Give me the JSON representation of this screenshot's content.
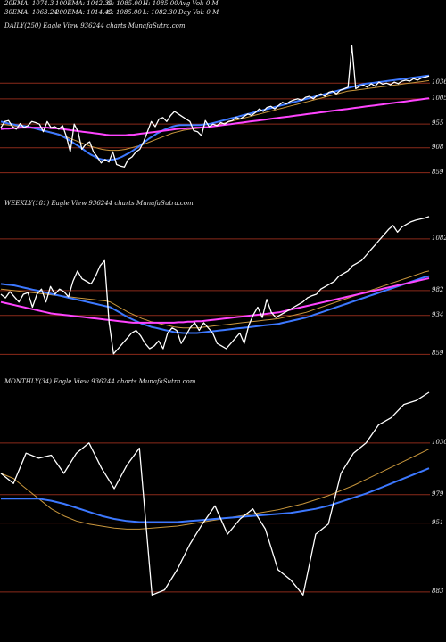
{
  "header": {
    "ema20": "20EMA: 1074.3",
    "ema100": "100EMA: 1042.39",
    "open": "O: 1085.00",
    "high": "H: 1085.00",
    "avg_vol": "Avg Vol: 0  M",
    "ema30": "30EMA: 1063.24",
    "ema200": "200EMA: 1014.49",
    "close": "C: 1085.00",
    "low": "L: 1082.30",
    "day_vol": "Day Vol: 0  M"
  },
  "colors": {
    "background": "#000000",
    "price": "#ffffff",
    "ema_fast": "#3c78ff",
    "ema_slow": "#ff44ff",
    "ema_brown": "#c8963c",
    "level_line": "#8b2a1a",
    "text": "#e8e8e8"
  },
  "chart_data": [
    {
      "type": "line",
      "label": "DAILY(250) Eagle  View  936244  charts MunafaSutra.com",
      "y_ticks": [
        "1036",
        "1005",
        "955",
        "908",
        "859"
      ],
      "levels": [
        1036,
        1005,
        955,
        908,
        859
      ],
      "ylim": [
        830,
        1130
      ],
      "series": [
        {
          "name": "price",
          "color": "#ffffff",
          "values": [
            948,
            960,
            962,
            950,
            945,
            956,
            948,
            952,
            960,
            958,
            955,
            940,
            960,
            948,
            950,
            945,
            952,
            930,
            900,
            955,
            940,
            905,
            915,
            920,
            900,
            890,
            878,
            885,
            880,
            900,
            875,
            872,
            870,
            885,
            890,
            900,
            905,
            920,
            940,
            960,
            950,
            965,
            968,
            960,
            972,
            980,
            975,
            970,
            965,
            960,
            942,
            940,
            932,
            962,
            950,
            955,
            952,
            958,
            955,
            960,
            962,
            968,
            965,
            970,
            975,
            972,
            978,
            985,
            980,
            988,
            990,
            985,
            992,
            998,
            995,
            1000,
            1003,
            1005,
            1002,
            1008,
            1010,
            1005,
            1012,
            1015,
            1010,
            1018,
            1020,
            1015,
            1022,
            1025,
            1028,
            1110,
            1025,
            1030,
            1032,
            1028,
            1035,
            1030,
            1038,
            1034,
            1036,
            1033,
            1038,
            1035,
            1040,
            1042,
            1040,
            1045,
            1042,
            1046,
            1048,
            1050
          ]
        },
        {
          "name": "EMA fast",
          "color": "#3c78ff",
          "values": [
            960,
            958,
            956,
            955,
            953,
            952,
            951,
            950,
            948,
            946,
            944,
            942,
            940,
            938,
            936,
            934,
            930,
            926,
            921,
            916,
            911,
            906,
            900,
            895,
            891,
            887,
            885,
            884,
            884,
            885,
            887,
            890,
            894,
            898,
            903,
            908,
            914,
            920,
            926,
            931,
            936,
            940,
            944,
            947,
            950,
            952,
            953,
            953,
            953,
            953,
            953,
            953,
            954,
            955,
            956,
            958,
            960,
            962,
            964,
            966,
            968,
            970,
            972,
            974,
            976,
            978,
            980,
            982,
            984,
            986,
            988,
            990,
            992,
            994,
            996,
            998,
            1000,
            1002,
            1004,
            1006,
            1008,
            1010,
            1012,
            1014,
            1016,
            1018,
            1020,
            1022,
            1024,
            1026,
            1028,
            1030,
            1032,
            1034,
            1035,
            1036,
            1037,
            1038,
            1039,
            1040,
            1041,
            1042,
            1043,
            1044,
            1045,
            1046,
            1047,
            1048,
            1049,
            1050,
            1051
          ]
        },
        {
          "name": "EMA slow",
          "color": "#ff44ff",
          "values": [
            945,
            946,
            946,
            947,
            947,
            948,
            948,
            948,
            948,
            948,
            948,
            948,
            948,
            947,
            947,
            946,
            945,
            944,
            943,
            942,
            941,
            940,
            939,
            938,
            937,
            936,
            935,
            934,
            933,
            933,
            933,
            933,
            933,
            934,
            934,
            935,
            936,
            937,
            938,
            939,
            940,
            941,
            942,
            943,
            944,
            945,
            946,
            946,
            947,
            947,
            948,
            948,
            949,
            949,
            950,
            951,
            952,
            953,
            954,
            955,
            956,
            957,
            958,
            959,
            960,
            961,
            962,
            963,
            964,
            965,
            966,
            967,
            968,
            969,
            970,
            971,
            972,
            973,
            974,
            975,
            976,
            977,
            978,
            979,
            980,
            981,
            982,
            983,
            984,
            985,
            986,
            987,
            988,
            989,
            990,
            991,
            992,
            993,
            994,
            995,
            996,
            997,
            998,
            999,
            1000,
            1001,
            1002,
            1003,
            1004,
            1005,
            1006
          ]
        },
        {
          "name": "EMA brown",
          "color": "#c8963c",
          "values": [
            955,
            954,
            953,
            952,
            951,
            950,
            949,
            948,
            947,
            946,
            945,
            943,
            941,
            939,
            937,
            935,
            932,
            929,
            926,
            923,
            920,
            917,
            914,
            911,
            909,
            907,
            905,
            904,
            903,
            903,
            903,
            904,
            905,
            907,
            909,
            911,
            913,
            916,
            919,
            922,
            925,
            928,
            931,
            934,
            937,
            939,
            941,
            943,
            944,
            945,
            946,
            947,
            948,
            949,
            950,
            952,
            954,
            956,
            958,
            960,
            962,
            964,
            966,
            968,
            970,
            972,
            974,
            976,
            978,
            980,
            982,
            984,
            986,
            988,
            990,
            992,
            994,
            996,
            998,
            1000,
            1002,
            1004,
            1006,
            1008,
            1010,
            1012,
            1014,
            1016,
            1018,
            1020,
            1021,
            1022,
            1023,
            1024,
            1025,
            1026,
            1027,
            1028,
            1029,
            1030,
            1031,
            1032,
            1033,
            1034,
            1035,
            1036,
            1037,
            1038,
            1039,
            1040,
            1041
          ]
        }
      ]
    },
    {
      "type": "line",
      "label": "WEEKLY(181) Eagle  View  936244  charts MunafaSutra.com",
      "y_ticks": [
        "1082",
        "982",
        "934",
        "859"
      ],
      "levels": [
        1082,
        982,
        934,
        859
      ],
      "ylim": [
        820,
        1130
      ],
      "series": [
        {
          "name": "price",
          "color": "#ffffff",
          "values": [
            975,
            968,
            980,
            970,
            960,
            975,
            978,
            950,
            975,
            985,
            960,
            990,
            975,
            985,
            980,
            970,
            1000,
            1020,
            1005,
            1000,
            995,
            1010,
            1030,
            1040,
            920,
            860,
            870,
            880,
            890,
            900,
            905,
            895,
            880,
            870,
            875,
            885,
            870,
            900,
            910,
            905,
            880,
            895,
            910,
            920,
            905,
            920,
            910,
            900,
            880,
            875,
            870,
            880,
            890,
            900,
            880,
            915,
            935,
            950,
            930,
            965,
            940,
            930,
            935,
            940,
            945,
            950,
            955,
            960,
            968,
            972,
            975,
            985,
            990,
            995,
            1000,
            1010,
            1015,
            1020,
            1030,
            1035,
            1040,
            1050,
            1060,
            1070,
            1080,
            1090,
            1100,
            1108,
            1095,
            1105,
            1110,
            1115,
            1118,
            1120,
            1122,
            1125
          ]
        },
        {
          "name": "EMA fast",
          "color": "#3c78ff",
          "values": [
            995,
            994,
            993,
            992,
            990,
            988,
            986,
            984,
            982,
            980,
            978,
            976,
            974,
            972,
            970,
            968,
            966,
            964,
            962,
            960,
            958,
            956,
            954,
            952,
            950,
            945,
            940,
            935,
            930,
            926,
            922,
            918,
            915,
            912,
            910,
            908,
            906,
            904,
            902,
            901,
            900,
            900,
            900,
            900,
            901,
            902,
            903,
            904,
            905,
            906,
            907,
            908,
            909,
            910,
            911,
            912,
            913,
            914,
            915,
            916,
            917,
            918,
            920,
            922,
            924,
            926,
            928,
            930,
            933,
            936,
            939,
            942,
            945,
            948,
            951,
            954,
            957,
            960,
            963,
            966,
            969,
            972,
            975,
            978,
            981,
            984,
            987,
            990,
            993,
            996,
            999,
            1002,
            1005,
            1008,
            1010
          ]
        },
        {
          "name": "EMA slow",
          "color": "#ff44ff",
          "values": [
            960,
            958,
            956,
            954,
            952,
            950,
            948,
            946,
            944,
            942,
            940,
            938,
            937,
            936,
            935,
            934,
            933,
            932,
            931,
            930,
            929,
            928,
            927,
            926,
            925,
            924,
            923,
            922,
            921,
            920,
            920,
            920,
            920,
            920,
            920,
            920,
            920,
            920,
            920,
            921,
            921,
            922,
            922,
            923,
            923,
            924,
            925,
            926,
            927,
            928,
            929,
            930,
            931,
            932,
            933,
            934,
            935,
            936,
            937,
            938,
            939,
            940,
            942,
            944,
            946,
            948,
            950,
            952,
            954,
            956,
            958,
            960,
            962,
            964,
            966,
            968,
            970,
            972,
            974,
            976,
            978,
            980,
            982,
            984,
            986,
            988,
            990,
            992,
            994,
            996,
            998,
            1000,
            1002,
            1004,
            1006
          ]
        },
        {
          "name": "EMA brown",
          "color": "#c8963c",
          "values": [
            985,
            984,
            983,
            982,
            981,
            980,
            979,
            978,
            977,
            976,
            975,
            974,
            973,
            972,
            971,
            970,
            969,
            968,
            967,
            966,
            965,
            964,
            963,
            962,
            960,
            955,
            950,
            945,
            940,
            936,
            932,
            928,
            925,
            922,
            920,
            918,
            916,
            914,
            912,
            911,
            910,
            910,
            910,
            910,
            911,
            912,
            913,
            914,
            915,
            916,
            917,
            918,
            919,
            920,
            921,
            922,
            923,
            924,
            925,
            926,
            927,
            928,
            930,
            932,
            934,
            936,
            938,
            940,
            943,
            946,
            949,
            952,
            955,
            958,
            961,
            964,
            967,
            970,
            973,
            976,
            979,
            982,
            985,
            988,
            991,
            994,
            997,
            1000,
            1003,
            1006,
            1009,
            1012,
            1015,
            1018,
            1020
          ]
        }
      ]
    },
    {
      "type": "line",
      "label": "MONTHLY(34) Eagle  View  936244  charts MunafaSutra.com",
      "y_ticks": [
        "1030",
        "979",
        "951",
        "883"
      ],
      "levels": [
        1030,
        979,
        951,
        883
      ],
      "ylim": [
        860,
        1080
      ],
      "series": [
        {
          "name": "price",
          "color": "#ffffff",
          "values": [
            1000,
            990,
            1020,
            1015,
            1018,
            1000,
            1020,
            1030,
            1005,
            985,
            1008,
            1025,
            880,
            885,
            905,
            930,
            950,
            968,
            940,
            955,
            965,
            945,
            905,
            895,
            880,
            940,
            950,
            1000,
            1020,
            1030,
            1048,
            1055,
            1068,
            1072,
            1080
          ]
        },
        {
          "name": "EMA fast",
          "color": "#3c78ff",
          "values": [
            975,
            975,
            975,
            975,
            973,
            970,
            966,
            962,
            958,
            955,
            953,
            952,
            952,
            952,
            952,
            953,
            954,
            955,
            956,
            957,
            958,
            959,
            960,
            961,
            963,
            965,
            968,
            972,
            976,
            980,
            985,
            990,
            995,
            1000,
            1005
          ]
        },
        {
          "name": "EMA slow",
          "color": "#ff44ff",
          "values": []
        },
        {
          "name": "EMA brown",
          "color": "#c8963c",
          "values": [
            1000,
            995,
            985,
            975,
            965,
            958,
            953,
            950,
            948,
            946,
            945,
            945,
            946,
            947,
            948,
            950,
            952,
            954,
            956,
            958,
            960,
            962,
            964,
            967,
            970,
            974,
            978,
            983,
            988,
            994,
            1000,
            1006,
            1012,
            1018,
            1024
          ]
        }
      ]
    }
  ]
}
